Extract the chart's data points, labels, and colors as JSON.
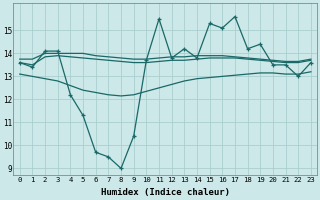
{
  "xlabel": "Humidex (Indice chaleur)",
  "bg_color": "#cce8e8",
  "grid_color": "#aacece",
  "line_color": "#1a6868",
  "x": [
    0,
    1,
    2,
    3,
    4,
    5,
    6,
    7,
    8,
    9,
    10,
    11,
    12,
    13,
    14,
    15,
    16,
    17,
    18,
    19,
    20,
    21,
    22,
    23
  ],
  "line_marker": [
    13.6,
    13.4,
    14.1,
    14.1,
    12.2,
    11.3,
    9.7,
    9.5,
    9.0,
    10.4,
    13.7,
    15.5,
    13.8,
    14.2,
    13.8,
    15.3,
    15.1,
    15.6,
    14.2,
    14.4,
    13.5,
    13.5,
    13.0,
    13.6
  ],
  "line_upper": [
    13.75,
    13.75,
    14.0,
    14.0,
    14.0,
    14.0,
    13.9,
    13.85,
    13.8,
    13.75,
    13.75,
    13.8,
    13.85,
    13.85,
    13.9,
    13.9,
    13.9,
    13.85,
    13.8,
    13.75,
    13.7,
    13.65,
    13.65,
    13.75
  ],
  "line_mid": [
    13.6,
    13.5,
    13.85,
    13.9,
    13.85,
    13.8,
    13.75,
    13.7,
    13.65,
    13.6,
    13.6,
    13.65,
    13.7,
    13.7,
    13.75,
    13.8,
    13.8,
    13.8,
    13.75,
    13.7,
    13.65,
    13.6,
    13.6,
    13.7
  ],
  "line_lower": [
    13.1,
    13.0,
    12.9,
    12.8,
    12.6,
    12.4,
    12.3,
    12.2,
    12.15,
    12.2,
    12.35,
    12.5,
    12.65,
    12.8,
    12.9,
    12.95,
    13.0,
    13.05,
    13.1,
    13.15,
    13.15,
    13.1,
    13.1,
    13.2
  ],
  "ylim": [
    8.7,
    16.2
  ],
  "yticks": [
    9,
    10,
    11,
    12,
    13,
    14,
    15
  ],
  "xticks": [
    0,
    1,
    2,
    3,
    4,
    5,
    6,
    7,
    8,
    9,
    10,
    11,
    12,
    13,
    14,
    15,
    16,
    17,
    18,
    19,
    20,
    21,
    22,
    23
  ]
}
